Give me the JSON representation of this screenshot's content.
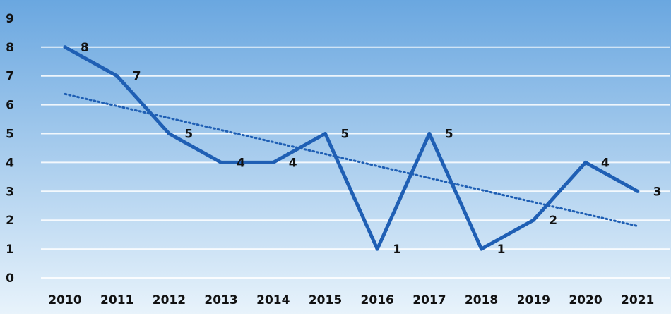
{
  "chart_data": {
    "type": "line",
    "title": "",
    "xlabel": "",
    "ylabel": "",
    "categories": [
      "2010",
      "2011",
      "2012",
      "2013",
      "2014",
      "2015",
      "2016",
      "2017",
      "2018",
      "2019",
      "2020",
      "2021"
    ],
    "series": [
      {
        "values": [
          8,
          7,
          5,
          4,
          4,
          5,
          1,
          5,
          1,
          2,
          4,
          3
        ]
      }
    ],
    "trendline": {
      "style": "dotted",
      "type": "linear"
    },
    "y_ticks": [
      "0",
      "1",
      "2",
      "3",
      "4",
      "5",
      "6",
      "7",
      "8",
      "9"
    ],
    "ylim": [
      0,
      9
    ],
    "grid": true,
    "legend": "none",
    "data_labels": true,
    "colors": {
      "line": "#1f5fb4",
      "trend": "#1f5fb4",
      "grid": "#ffffff",
      "bg_top": "#6aa7e0",
      "bg_bottom": "#e8f3fb",
      "text": "#111111"
    }
  }
}
